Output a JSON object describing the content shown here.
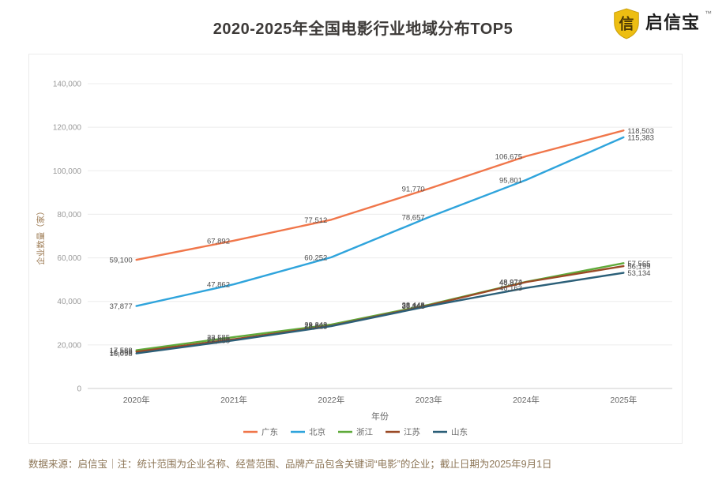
{
  "title": "2020-2025年全国电影行业地域分布TOP5",
  "brand": {
    "name": "启信宝",
    "tm": "™",
    "shield_color": "#EDBE12",
    "shield_glyph": "信"
  },
  "footer": {
    "text": "数据来源：启信宝｜注：统计范围为企业名称、经营范围、品牌产品包含关键词“电影”的企业；截止日期为2025年9月1日"
  },
  "chart_data": {
    "type": "line",
    "title": "2020-2025年全国电影行业地域分布TOP5",
    "categories": [
      "2020年",
      "2021年",
      "2022年",
      "2023年",
      "2024年",
      "2025年"
    ],
    "series": [
      {
        "name": "广东",
        "color": "#F0764A",
        "values": [
          59100,
          67892,
          77512,
          91770,
          106675,
          118503
        ]
      },
      {
        "name": "北京",
        "color": "#2FA4DC",
        "values": [
          37877,
          47862,
          60252,
          78657,
          95801,
          115383
        ]
      },
      {
        "name": "浙江",
        "color": "#5FAA3A",
        "values": [
          17588,
          23585,
          29343,
          38448,
          48974,
          57565
        ]
      },
      {
        "name": "江苏",
        "color": "#9A4A26",
        "values": [
          16898,
          22606,
          28823,
          38141,
          48873,
          56199
        ]
      },
      {
        "name": "山东",
        "color": "#2B5F78",
        "values": [
          16098,
          22088,
          28623,
          37848,
          46163,
          53134
        ]
      }
    ],
    "xlabel": "年份",
    "ylabel": "企业数量（家）",
    "ylim": [
      0,
      140000
    ],
    "ytick_step": 20000,
    "grid": true,
    "legend_position": "bottom",
    "colors": {
      "gridline": "#ECECEC",
      "axis_line": "#CCCCCC",
      "tick_label": "#999999",
      "x_tick_label": "#666666",
      "data_label": "#4D4D4D",
      "y_axis_title": "#9C7A52",
      "legend_text": "#666666"
    }
  }
}
